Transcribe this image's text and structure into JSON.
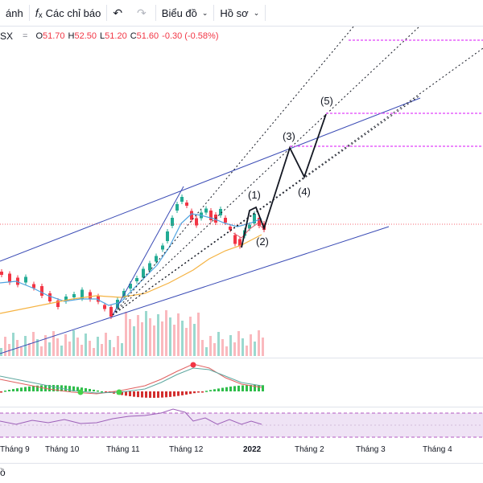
{
  "toolbar": {
    "items": [
      {
        "label": "ánh"
      },
      {
        "label": "Các chỉ báo",
        "icon": "fx-icon"
      },
      {
        "label": "Biểu đồ"
      },
      {
        "label": "Hồ sơ"
      }
    ],
    "undo_icon": "undo-icon",
    "redo_icon": "redo-icon"
  },
  "legend": {
    "symbol": "SX",
    "separator": "=",
    "open_label": "O",
    "open_value": "51.70",
    "high_label": "H",
    "high_value": "52.50",
    "low_label": "L",
    "low_value": "51.20",
    "close_label": "C",
    "close_value": "51.60",
    "change": "-0.30 (-0.58%)",
    "down_color": "#f23645",
    "up_color": "#22ab94"
  },
  "waves": [
    "(1)",
    "(2)",
    "(3)",
    "(4)",
    "(5)"
  ],
  "time_axis": [
    "Tháng 9",
    "Tháng 10",
    "Tháng 11",
    "Tháng 12",
    "2022",
    "Tháng 2",
    "Tháng 3",
    "Tháng 4"
  ],
  "footer": {
    "text": "ồ"
  }
}
